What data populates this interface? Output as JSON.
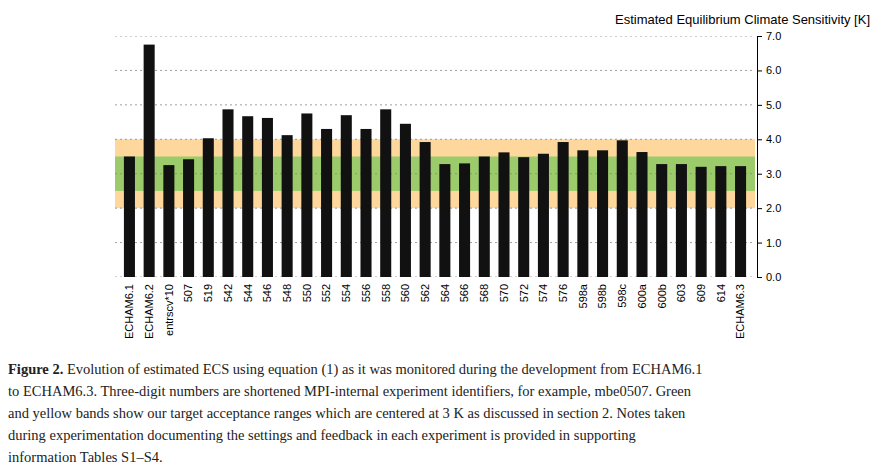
{
  "chart_data": {
    "type": "bar",
    "title": "Estimated Equilibrium Climate Sensitivity [K]",
    "categories": [
      "ECHAM6.1",
      "ECHAM6.2",
      "entrscv*10",
      "507",
      "519",
      "542",
      "544",
      "546",
      "548",
      "550",
      "552",
      "554",
      "556",
      "558",
      "560",
      "562",
      "564",
      "566",
      "568",
      "570",
      "572",
      "574",
      "576",
      "598a",
      "598b",
      "598c",
      "600a",
      "600b",
      "603",
      "609",
      "614",
      "ECHAM6.3"
    ],
    "values": [
      3.5,
      6.75,
      3.25,
      3.42,
      4.03,
      4.87,
      4.67,
      4.62,
      4.12,
      4.75,
      4.3,
      4.7,
      4.3,
      4.87,
      4.45,
      3.92,
      3.28,
      3.3,
      3.5,
      3.62,
      3.48,
      3.58,
      3.92,
      3.68,
      3.68,
      3.97,
      3.63,
      3.28,
      3.28,
      3.2,
      3.22,
      3.22
    ],
    "color": "#111111",
    "ylim": [
      0,
      7
    ],
    "yticks": [
      {
        "value": 0,
        "label": "0.0"
      },
      {
        "value": 1,
        "label": "1.0"
      },
      {
        "value": 2,
        "label": "2.0"
      },
      {
        "value": 3,
        "label": "3.0"
      },
      {
        "value": 4,
        "label": "4.0"
      },
      {
        "value": 5,
        "label": "5.0"
      },
      {
        "value": 6,
        "label": "6.0"
      },
      {
        "value": 7,
        "label": "7.0"
      }
    ],
    "grid": true,
    "bands": [
      {
        "from": 2,
        "to": 4,
        "color": "#fdd79b"
      },
      {
        "from": 2.5,
        "to": 3.5,
        "color": "#9ccb6c"
      }
    ],
    "caption_label": "Figure 2.",
    "caption": [
      "Evolution of estimated ECS using equation (1) as it was monitored during the development from ECHAM6.1",
      "to ECHAM6.3. Three-digit numbers are shortened MPI-internal experiment identifiers, for example, mbe0507. Green",
      "and yellow bands show our target acceptance ranges which are centered at 3 K as discussed in section 2. Notes taken",
      "during experimentation documenting the settings and feedback in each experiment is provided in supporting",
      "information Tables S1–S4."
    ]
  }
}
